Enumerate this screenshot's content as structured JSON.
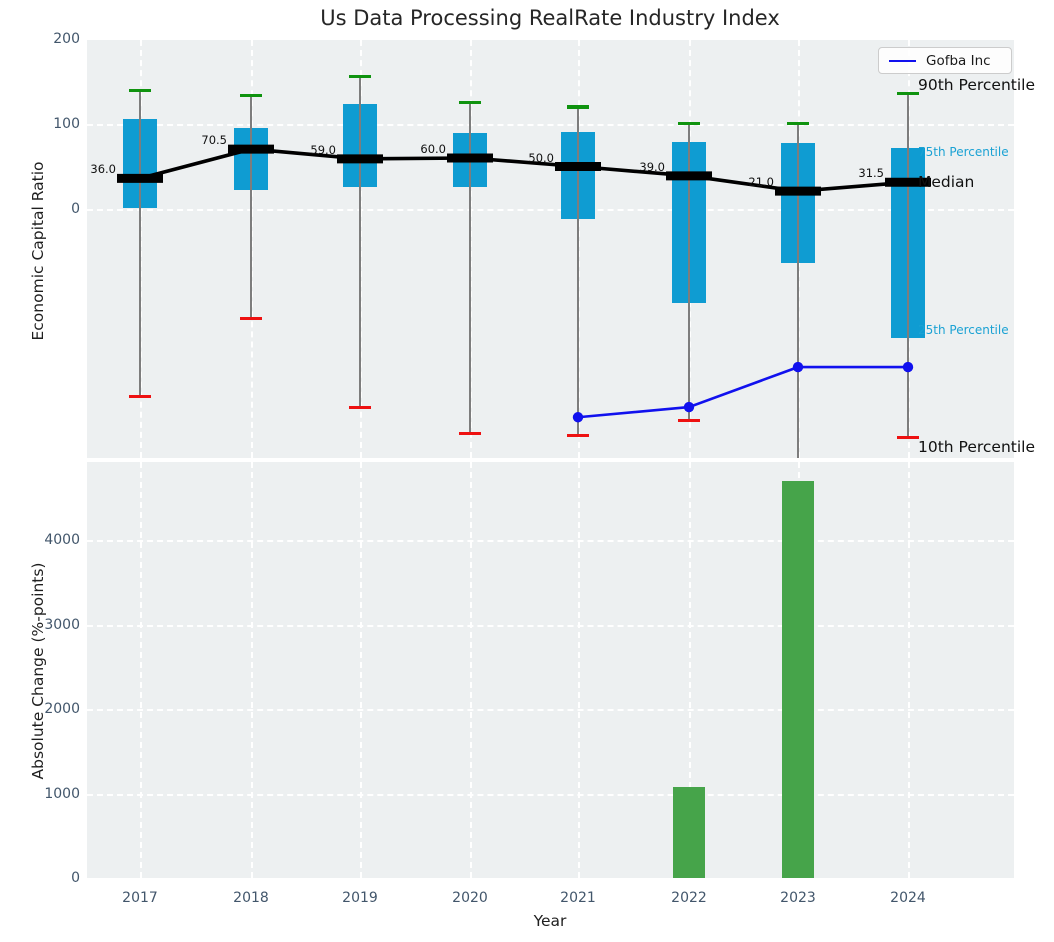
{
  "title": "Us Data Processing RealRate Industry Index",
  "xlabel": "Year",
  "legend": {
    "label": "Gofba Inc"
  },
  "right_labels": [
    {
      "id": "p90",
      "text": "90th Percentile",
      "style": "big"
    },
    {
      "id": "p75",
      "text": "75th Percentile",
      "style": "small"
    },
    {
      "id": "median",
      "text": "Median",
      "style": "big"
    },
    {
      "id": "p25",
      "text": "25th Percentile",
      "style": "small"
    },
    {
      "id": "p10",
      "text": "10th Percentile",
      "style": "big"
    }
  ],
  "colors": {
    "box_fill": "#0f9cd2",
    "cap_90th": "#0f930f",
    "cap_10th": "#ee1111",
    "whisker": "#7d7d7d",
    "median_line": "#000000",
    "company_line": "#1111ee",
    "bar_fill": "#46a44a",
    "axes_background": "#edf0f1",
    "grid": "#ffffff",
    "tick_text": "#42566b",
    "percentile_label": "#1ba2d4"
  },
  "chart_data": [
    {
      "type": "boxplot",
      "title": "Us Data Processing RealRate Industry Index",
      "ylabel": "Economic Capital Ratio",
      "categories": [
        "2017",
        "2018",
        "2019",
        "2020",
        "2021",
        "2022",
        "2023",
        "2024"
      ],
      "yticks": [
        0,
        100,
        200
      ],
      "ylim": [
        -295,
        200
      ],
      "grid": true,
      "legend_position": "upper right",
      "series": {
        "p90": [
          139,
          134,
          156,
          125,
          120,
          101,
          101,
          136
        ],
        "q3": [
          106,
          95,
          124,
          90,
          91,
          79,
          78,
          72
        ],
        "median": [
          36.0,
          70.5,
          59.0,
          60.0,
          50.0,
          39.0,
          21.0,
          31.5
        ],
        "q1": [
          1,
          22,
          26,
          26,
          -12,
          -111,
          -64,
          -152
        ],
        "p10": [
          -221,
          -129,
          -234,
          -264,
          -266,
          -249,
          -305,
          -269
        ]
      },
      "median_labels": [
        "36.0",
        "70.5",
        "59.0",
        "60.0",
        "50.0",
        "39.0",
        "21.0",
        "31.5"
      ],
      "company_line": {
        "name": "Gofba Inc",
        "x": [
          "2021",
          "2022",
          "2023",
          "2024"
        ],
        "values": [
          -245,
          -233,
          -186,
          -186
        ]
      }
    },
    {
      "type": "bar",
      "ylabel": "Absolute Change (%-points)",
      "xlabel": "Year",
      "categories": [
        "2017",
        "2018",
        "2019",
        "2020",
        "2021",
        "2022",
        "2023",
        "2024"
      ],
      "values": [
        0,
        0,
        0,
        0,
        0,
        1080,
        4700,
        0
      ],
      "yticks": [
        0,
        1000,
        2000,
        3000,
        4000
      ],
      "ylim": [
        0,
        4920
      ],
      "grid": true
    }
  ]
}
